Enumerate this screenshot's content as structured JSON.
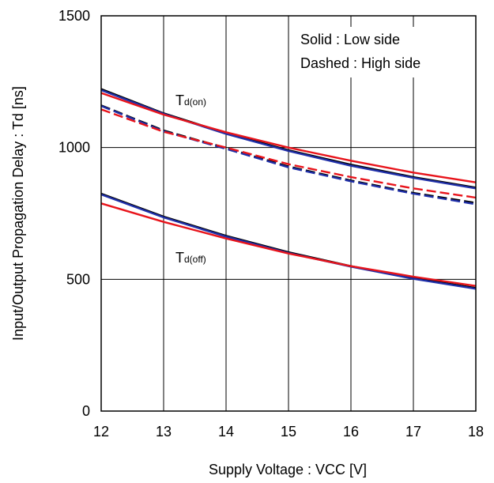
{
  "chart_data": {
    "type": "line",
    "title": "",
    "xlabel": "Supply Voltage : VCC [V]",
    "ylabel": "Input/Output Propagation Delay : Td [ns]",
    "xlim": [
      12,
      18
    ],
    "ylim": [
      0,
      1500
    ],
    "xticks": [
      12,
      13,
      14,
      15,
      16,
      17,
      18
    ],
    "yticks": [
      0,
      500,
      1000,
      1500
    ],
    "grid": true,
    "notes": [
      "Solid : Low side",
      "Dashed : High side"
    ],
    "annotations": [
      {
        "text": "T",
        "sub": "d(on)"
      },
      {
        "text": "T",
        "sub": "d(off)"
      }
    ],
    "x": [
      12,
      13,
      14,
      15,
      16,
      17,
      18
    ],
    "series": [
      {
        "group": "td_on_low",
        "style": "solid",
        "color": "#000000",
        "values": [
          1222,
          1130,
          1055,
          990,
          935,
          888,
          848
        ]
      },
      {
        "group": "td_on_low",
        "style": "solid",
        "color": "#1f2fa8",
        "values": [
          1218,
          1128,
          1052,
          987,
          931,
          885,
          845
        ]
      },
      {
        "group": "td_on_low",
        "style": "solid",
        "color": "#e8141b",
        "values": [
          1207,
          1125,
          1058,
          1000,
          950,
          905,
          868
        ]
      },
      {
        "group": "td_on_high",
        "style": "dashed",
        "color": "#000000",
        "values": [
          1160,
          1065,
          998,
          928,
          875,
          828,
          790
        ]
      },
      {
        "group": "td_on_high",
        "style": "dashed",
        "color": "#1f2fa8",
        "values": [
          1158,
          1062,
          995,
          925,
          872,
          825,
          785
        ]
      },
      {
        "group": "td_on_high",
        "style": "dashed",
        "color": "#e8141b",
        "values": [
          1145,
          1060,
          1000,
          937,
          888,
          845,
          810
        ]
      },
      {
        "group": "td_off_low",
        "style": "solid",
        "color": "#000000",
        "values": [
          825,
          738,
          665,
          603,
          550,
          505,
          467
        ]
      },
      {
        "group": "td_off_low",
        "style": "solid",
        "color": "#1f2fa8",
        "values": [
          822,
          735,
          662,
          600,
          548,
          502,
          464
        ]
      },
      {
        "group": "td_off_low",
        "style": "solid",
        "color": "#e8141b",
        "values": [
          788,
          718,
          655,
          598,
          550,
          510,
          475
        ]
      }
    ]
  }
}
